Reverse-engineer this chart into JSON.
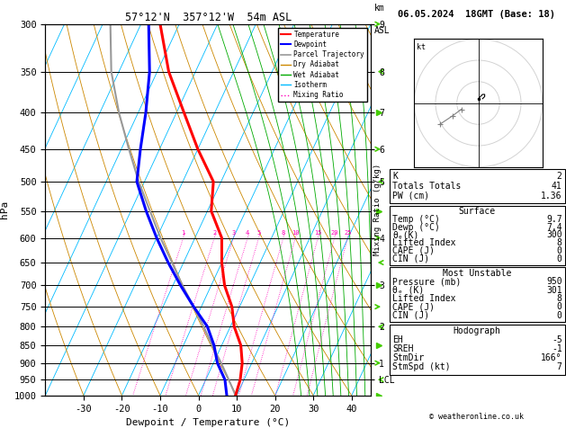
{
  "title_left": "57°12'N  357°12'W  54m ASL",
  "title_right": "06.05.2024  18GMT (Base: 18)",
  "xlabel": "Dewpoint / Temperature (°C)",
  "ylabel_left": "hPa",
  "pressure_major": [
    300,
    350,
    400,
    450,
    500,
    550,
    600,
    650,
    700,
    750,
    800,
    850,
    900,
    950,
    1000
  ],
  "temp_ticks": [
    -30,
    -20,
    -10,
    0,
    10,
    20,
    30,
    40
  ],
  "km_labels": [
    [
      300,
      "9"
    ],
    [
      350,
      "8"
    ],
    [
      400,
      "7"
    ],
    [
      450,
      "6"
    ],
    [
      500,
      "5"
    ],
    [
      600,
      "4"
    ],
    [
      700,
      "3"
    ],
    [
      800,
      "2"
    ],
    [
      900,
      "1"
    ],
    [
      950,
      "LCL"
    ]
  ],
  "temperature_profile_p": [
    1000,
    950,
    900,
    850,
    800,
    750,
    700,
    650,
    600,
    550,
    500,
    450,
    400,
    350,
    300
  ],
  "temperature_profile_t": [
    9.7,
    9.0,
    7.5,
    5.0,
    1.0,
    -2.0,
    -6.5,
    -10.0,
    -13.0,
    -19.0,
    -22.0,
    -30.0,
    -38.0,
    -47.0,
    -55.0
  ],
  "dewpoint_profile_p": [
    1000,
    950,
    900,
    850,
    800,
    750,
    700,
    650,
    600,
    550,
    500,
    450,
    400,
    350,
    300
  ],
  "dewpoint_profile_t": [
    7.4,
    5.0,
    1.0,
    -2.0,
    -6.0,
    -12.0,
    -18.0,
    -24.0,
    -30.0,
    -36.0,
    -42.0,
    -45.0,
    -48.0,
    -52.0,
    -58.0
  ],
  "parcel_profile_p": [
    1000,
    950,
    900,
    850,
    800,
    750,
    700,
    650,
    600,
    550,
    500,
    450,
    400,
    350,
    300
  ],
  "parcel_profile_t": [
    9.7,
    6.0,
    2.0,
    -2.5,
    -7.0,
    -12.0,
    -17.5,
    -23.0,
    -29.0,
    -35.0,
    -41.5,
    -48.0,
    -55.0,
    -62.0,
    -68.0
  ],
  "color_temp": "#ff0000",
  "color_dewp": "#0000ff",
  "color_parcel": "#999999",
  "color_dry_adiabat": "#cc8800",
  "color_wet_adiabat": "#00aa00",
  "color_isotherm": "#00bbff",
  "color_mixing": "#ff00bb",
  "info_K": 2,
  "info_TT": 41,
  "info_PW": "1.36",
  "surface_temp": "9.7",
  "surface_dewp": "7.4",
  "surface_theta_e": 300,
  "surface_li": 8,
  "surface_cape": 0,
  "surface_cin": 0,
  "mu_pressure": 950,
  "mu_theta_e": 301,
  "mu_li": 8,
  "mu_cape": 0,
  "mu_cin": 0,
  "hodo_eh": -5,
  "hodo_sreh": -1,
  "hodo_stmdir": "166°",
  "hodo_stmspd": 7,
  "copyright": "© weatheronline.co.uk",
  "mixing_ratios": [
    1,
    2,
    3,
    4,
    5,
    8,
    10,
    15,
    20,
    25
  ],
  "T_min": -40,
  "T_max": 45,
  "skew_factor": 45
}
